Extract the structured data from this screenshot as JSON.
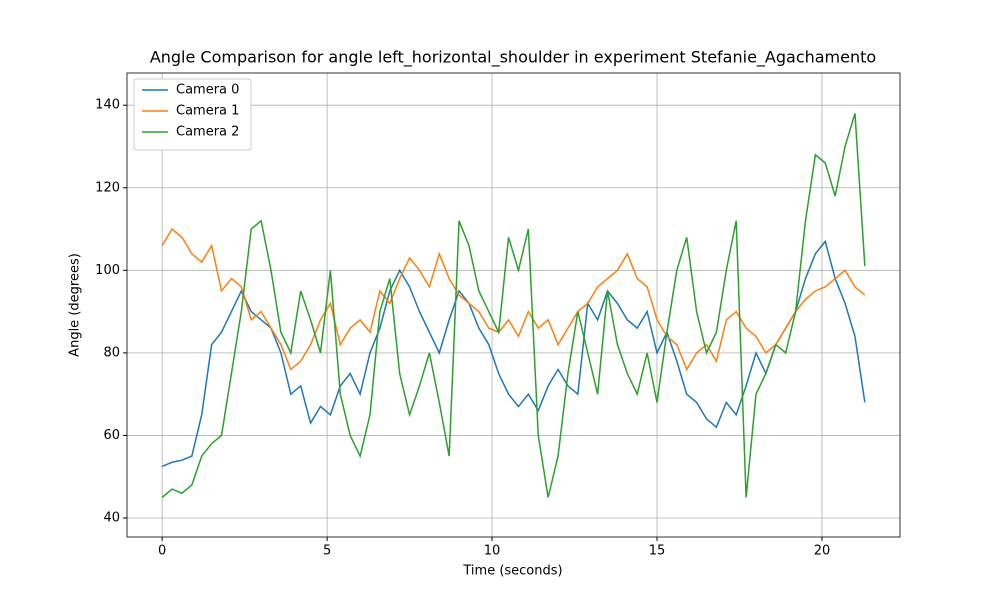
{
  "chart_data": {
    "type": "line",
    "title": "Angle Comparison for angle left_horizontal_shoulder in experiment Stefanie_Agachamento",
    "x_label": "Time (seconds)",
    "y_label": "Angle (degrees)",
    "x": [
      0,
      0.3,
      0.6,
      0.9,
      1.2,
      1.5,
      1.8,
      2.1,
      2.4,
      2.7,
      3,
      3.3,
      3.6,
      3.9,
      4.2,
      4.5,
      4.8,
      5.1,
      5.4,
      5.7,
      6,
      6.3,
      6.6,
      6.9,
      7.2,
      7.5,
      7.8,
      8.1,
      8.4,
      8.7,
      9,
      9.3,
      9.6,
      9.9,
      10.2,
      10.5,
      10.8,
      11.1,
      11.4,
      11.7,
      12,
      12.3,
      12.6,
      12.9,
      13.2,
      13.5,
      13.8,
      14.1,
      14.4,
      14.7,
      15,
      15.3,
      15.6,
      15.9,
      16.2,
      16.5,
      16.8,
      17.1,
      17.4,
      17.7,
      18,
      18.3,
      18.6,
      18.9,
      19.2,
      19.5,
      19.8,
      20.1,
      20.4,
      20.7,
      21,
      21.3
    ],
    "series": [
      {
        "name": "Camera 0",
        "color": "#1f77b4",
        "values": [
          52.5,
          53.5,
          54,
          55,
          65,
          82,
          85,
          90,
          95,
          90,
          88,
          86,
          80,
          70,
          72,
          63,
          67,
          65,
          72,
          75,
          70,
          80,
          86,
          95,
          100,
          96,
          90,
          85,
          80,
          88,
          95,
          92,
          86,
          82,
          75,
          70,
          67,
          70,
          66,
          72,
          76,
          72,
          70,
          92,
          88,
          95,
          92,
          88,
          86,
          90,
          80,
          85,
          78,
          70,
          68,
          64,
          62,
          68,
          65,
          72,
          80,
          75,
          82,
          86,
          90,
          98,
          104,
          107,
          98,
          92,
          84,
          68
        ]
      },
      {
        "name": "Camera 1",
        "color": "#ff7f0e",
        "values": [
          106,
          110,
          108,
          104,
          102,
          106,
          95,
          98,
          96,
          88,
          90,
          86,
          82,
          76,
          78,
          82,
          88,
          92,
          82,
          86,
          88,
          85,
          95,
          92,
          98,
          103,
          100,
          96,
          104,
          98,
          94,
          92,
          90,
          86,
          85,
          88,
          84,
          90,
          86,
          88,
          82,
          86,
          90,
          92,
          96,
          98,
          100,
          104,
          98,
          96,
          88,
          84,
          82,
          76,
          80,
          82,
          78,
          88,
          90,
          86,
          84,
          80,
          82,
          86,
          90,
          93,
          95,
          96,
          98,
          100,
          96,
          94
        ]
      },
      {
        "name": "Camera 2",
        "color": "#2ca02c",
        "values": [
          45,
          47,
          46,
          48,
          55,
          58,
          60,
          75,
          90,
          110,
          112,
          100,
          85,
          80,
          95,
          88,
          80,
          100,
          70,
          60,
          55,
          65,
          90,
          98,
          75,
          65,
          72,
          80,
          68,
          55,
          112,
          106,
          95,
          90,
          85,
          108,
          100,
          110,
          60,
          45,
          55,
          75,
          90,
          80,
          70,
          95,
          82,
          75,
          70,
          80,
          68,
          85,
          100,
          108,
          90,
          80,
          85,
          100,
          112,
          45,
          70,
          75,
          82,
          80,
          90,
          112,
          128,
          126,
          118,
          130,
          138,
          101
        ]
      }
    ],
    "xlim": [
      -1.065,
      22.365
    ],
    "ylim": [
      35.4,
      147.8
    ],
    "xticks": [
      0,
      5,
      10,
      15,
      20
    ],
    "yticks": [
      40,
      60,
      80,
      100,
      120,
      140
    ],
    "grid": true,
    "legend": "upper left"
  }
}
